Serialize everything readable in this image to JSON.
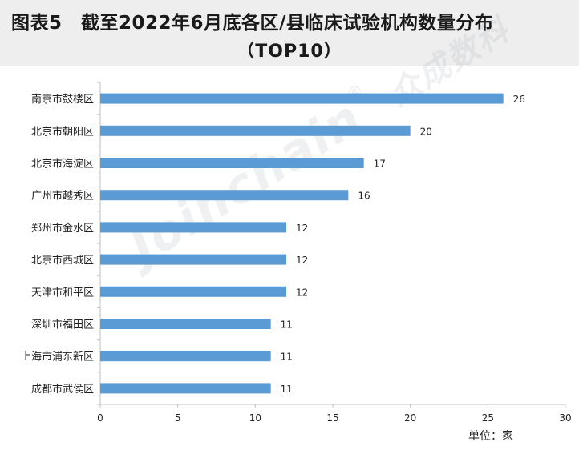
{
  "title": {
    "line1": "图表5　截至2022年6月底各区/县临床试验机构数量分布",
    "line2": "（TOP10）"
  },
  "unit_label": "单位：家",
  "watermark": {
    "text": "Joinchain",
    "registered": "®",
    "cn": "众成数科"
  },
  "colors": {
    "bar": "#5B9BD5",
    "axis": "#bfbfbf",
    "background_band": "#eeeeee"
  },
  "chart_data": {
    "type": "bar",
    "orientation": "horizontal",
    "categories": [
      "南京市鼓楼区",
      "北京市朝阳区",
      "北京市海淀区",
      "广州市越秀区",
      "郑州市金水区",
      "北京市西城区",
      "天津市和平区",
      "深圳市福田区",
      "上海市浦东新区",
      "成都市武侯区"
    ],
    "values": [
      26,
      20,
      17,
      16,
      12,
      12,
      12,
      11,
      11,
      11
    ],
    "xlim": [
      0,
      30
    ],
    "xticks": [
      0,
      5,
      10,
      15,
      20,
      25,
      30
    ],
    "grid": false,
    "data_labels": true
  }
}
